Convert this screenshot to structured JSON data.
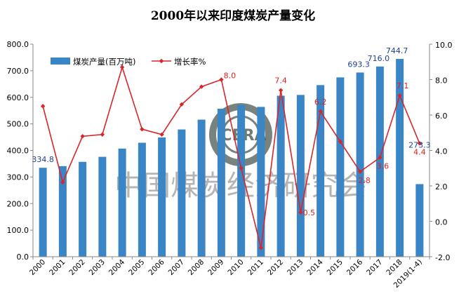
{
  "chart_data": {
    "type": "bar+line",
    "title": "2000年以来印度煤炭产量变化",
    "categories": [
      "2000",
      "2001",
      "2002",
      "2003",
      "2004",
      "2005",
      "2006",
      "2007",
      "2008",
      "2009",
      "2010",
      "2011",
      "2012",
      "2013",
      "2014",
      "2015",
      "2016",
      "2017",
      "2018",
      "2019(1-4)"
    ],
    "series": [
      {
        "name": "煤炭产量(百万吨)",
        "type": "bar",
        "axis": "left",
        "color": "#3a85c5",
        "values": [
          334.8,
          341,
          357,
          376,
          407,
          429,
          449,
          479,
          516,
          557,
          571,
          564,
          606,
          609,
          646,
          675,
          693.3,
          716.0,
          744.7,
          273.3
        ],
        "labels": {
          "0": "334.8",
          "16": "693.3",
          "17": "716.0",
          "18": "744.7",
          "19": "273.3"
        }
      },
      {
        "name": "增长率%",
        "type": "line",
        "axis": "right",
        "color": "#d9262a",
        "values": [
          6.5,
          2.2,
          4.8,
          4.9,
          8.7,
          5.2,
          4.9,
          6.6,
          7.6,
          8.0,
          3.0,
          -1.5,
          7.4,
          0.5,
          6.2,
          4.5,
          2.8,
          3.6,
          7.1,
          4.4
        ],
        "labels": {
          "9": "8.0",
          "12": "7.4",
          "13": "0.5",
          "14": "6.2",
          "16": "2.8",
          "17": "3.6",
          "18": "7.1",
          "19": "4.4"
        }
      }
    ],
    "y_left": {
      "min": 0,
      "max": 800,
      "step": 100,
      "tick_labels": [
        "0.0",
        "100.0",
        "200.0",
        "300.0",
        "400.0",
        "500.0",
        "600.0",
        "700.0",
        "800.0"
      ]
    },
    "y_right": {
      "min": -2,
      "max": 10,
      "step": 2,
      "tick_labels": [
        "-2.0",
        "0.0",
        "2.0",
        "4.0",
        "6.0",
        "8.0",
        "10.0"
      ]
    },
    "legend_position": "top-left",
    "grid": false,
    "watermark_text": "中国煤炭经济研究会",
    "logo_text": "CERA"
  }
}
